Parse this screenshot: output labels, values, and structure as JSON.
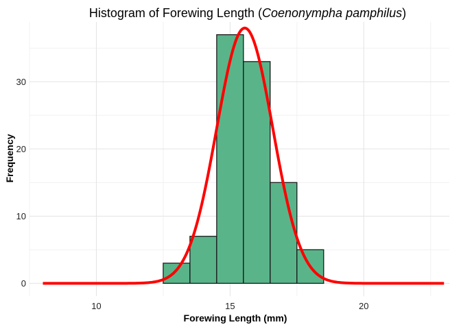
{
  "chart_data": {
    "type": "bar",
    "title_main": "Histogram of Forewing Length (",
    "title_species": "Coenonympha pamphilus",
    "title_close": ")",
    "xlabel": "Forewing Length (mm)",
    "ylabel": "Frequency",
    "xlim": [
      7.5,
      23.2
    ],
    "ylim": [
      -1.9,
      38.9
    ],
    "x_ticks": [
      10,
      15,
      20
    ],
    "x_minor_ticks": [
      7.5,
      12.5,
      17.5,
      22.5
    ],
    "y_ticks": [
      0,
      10,
      20,
      30
    ],
    "y_minor_ticks": [
      5,
      15,
      25,
      35
    ],
    "grid": true,
    "bin_width": 1,
    "bins": [
      {
        "start": 12.5,
        "end": 13.5,
        "count": 3
      },
      {
        "start": 13.5,
        "end": 14.5,
        "count": 7
      },
      {
        "start": 14.5,
        "end": 15.5,
        "count": 37
      },
      {
        "start": 15.5,
        "end": 16.5,
        "count": 33
      },
      {
        "start": 16.5,
        "end": 17.5,
        "count": 15
      },
      {
        "start": 17.5,
        "end": 18.5,
        "count": 5
      }
    ],
    "normal_curve": {
      "mean": 15.55,
      "sd": 1.05,
      "n": 100,
      "x_range": [
        8,
        23
      ]
    },
    "colors": {
      "bar_fill": "#5ab48a",
      "bar_stroke": "#1a1a1a",
      "curve": "#ff0000"
    }
  }
}
